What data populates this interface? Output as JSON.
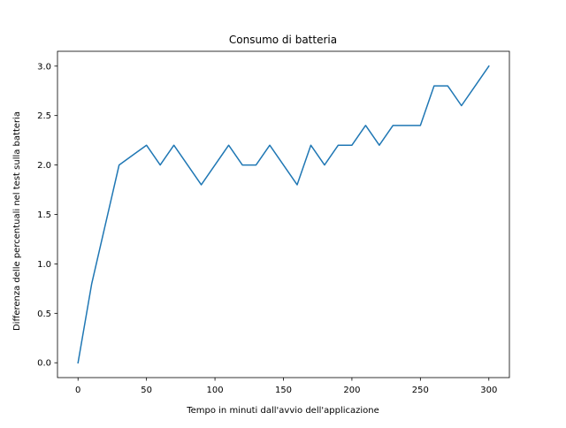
{
  "chart_data": {
    "type": "line",
    "title": "Consumo di batteria",
    "xlabel": "Tempo in minuti dall'avvio dell'applicazione",
    "ylabel": "Differenza delle percentuali nel test sulla batteria",
    "xlim": [
      -15,
      315
    ],
    "ylim": [
      -0.15,
      3.15
    ],
    "xticks": [
      0,
      50,
      100,
      150,
      200,
      250,
      300
    ],
    "yticks": [
      0.0,
      0.5,
      1.0,
      1.5,
      2.0,
      2.5,
      3.0
    ],
    "xtick_labels": [
      "0",
      "50",
      "100",
      "150",
      "200",
      "250",
      "300"
    ],
    "ytick_labels": [
      "0.0",
      "0.5",
      "1.0",
      "1.5",
      "2.0",
      "2.5",
      "3.0"
    ],
    "grid": false,
    "series": [
      {
        "color": "#1f77b4",
        "x": [
          0,
          10,
          20,
          30,
          40,
          50,
          60,
          70,
          80,
          90,
          100,
          110,
          120,
          130,
          140,
          150,
          160,
          170,
          180,
          190,
          200,
          210,
          220,
          230,
          240,
          250,
          260,
          270,
          280,
          290,
          300
        ],
        "y": [
          0.0,
          0.8,
          1.4,
          2.0,
          2.1,
          2.2,
          2.0,
          2.2,
          2.0,
          1.8,
          2.0,
          2.2,
          2.0,
          2.0,
          2.2,
          2.0,
          1.8,
          2.2,
          2.0,
          2.2,
          2.2,
          2.4,
          2.2,
          2.4,
          2.4,
          2.4,
          2.8,
          2.8,
          2.6,
          2.8,
          3.0
        ]
      }
    ]
  }
}
